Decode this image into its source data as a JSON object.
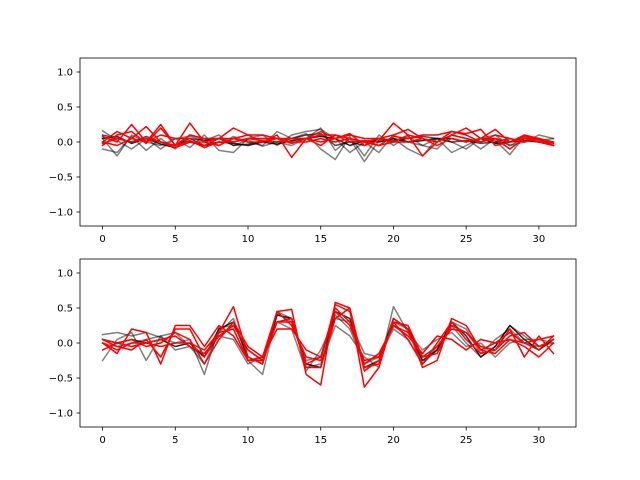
{
  "chart_data": [
    {
      "type": "line",
      "title": "",
      "xlabel": "",
      "ylabel": "",
      "xlim": [
        -1.55,
        32.55
      ],
      "ylim": [
        -1.2,
        1.2
      ],
      "xticks": [
        0,
        5,
        10,
        15,
        20,
        25,
        30
      ],
      "yticks": [
        -1.0,
        -0.5,
        0.0,
        0.5,
        1.0
      ],
      "xtick_labels": [
        "0",
        "5",
        "10",
        "15",
        "20",
        "25",
        "30"
      ],
      "ytick_labels": [
        "−1.0",
        "−0.5",
        "0.0",
        "0.5",
        "1.0"
      ],
      "grid": false,
      "x": [
        0,
        1,
        2,
        3,
        4,
        5,
        6,
        7,
        8,
        9,
        10,
        11,
        12,
        13,
        14,
        15,
        16,
        17,
        18,
        19,
        20,
        21,
        22,
        23,
        24,
        25,
        26,
        27,
        28,
        29,
        30,
        31
      ],
      "series": [
        {
          "color": "#000000",
          "opacity": 0.5,
          "values": [
            0.16,
            0.02,
            -0.1,
            0.05,
            -0.1,
            0.05,
            0.08,
            0.02,
            0.1,
            -0.05,
            0.03,
            -0.06,
            0.0,
            -0.05,
            0.05,
            0.2,
            -0.12,
            0.05,
            -0.28,
            0.02,
            0.05,
            -0.1,
            -0.2,
            0.05,
            -0.15,
            -0.05,
            0.05,
            0.02,
            -0.18,
            0.08,
            0.02,
            0.05
          ]
        },
        {
          "color": "#000000",
          "opacity": 0.5,
          "values": [
            -0.1,
            -0.15,
            0.08,
            -0.12,
            0.05,
            -0.1,
            0.1,
            0.05,
            -0.05,
            0.08,
            0.0,
            -0.05,
            0.15,
            0.05,
            0.12,
            -0.1,
            -0.25,
            0.08,
            -0.2,
            0.1,
            -0.05,
            0.08,
            -0.05,
            -0.1,
            0.1,
            0.05,
            -0.1,
            0.05,
            -0.05,
            0.0,
            0.1,
            0.05
          ]
        },
        {
          "color": "#000000",
          "opacity": 0.5,
          "values": [
            0.05,
            -0.2,
            0.1,
            0.0,
            -0.05,
            0.05,
            -0.08,
            0.1,
            -0.12,
            -0.15,
            0.05,
            0.1,
            -0.05,
            0.1,
            0.15,
            0.18,
            0.05,
            -0.15,
            0.0,
            -0.15,
            0.1,
            0.0,
            -0.05,
            0.05,
            0.0,
            -0.1,
            0.05,
            0.1,
            -0.05,
            0.05,
            0.0,
            0.0
          ]
        },
        {
          "color": "#000000",
          "opacity": 0.7,
          "values": [
            0.1,
            0.05,
            0.0,
            0.08,
            0.0,
            -0.05,
            0.05,
            0.02,
            0.05,
            -0.05,
            -0.03,
            0.02,
            0.0,
            0.05,
            0.1,
            0.12,
            -0.05,
            0.0,
            -0.05,
            0.05,
            0.02,
            0.05,
            0.08,
            0.05,
            0.0,
            0.02,
            -0.02,
            0.0,
            0.05,
            0.0,
            0.05,
            -0.05
          ]
        },
        {
          "color": "#000000",
          "opacity": 0.85,
          "values": [
            0.05,
            0.08,
            -0.02,
            0.05,
            -0.03,
            -0.08,
            0.0,
            -0.05,
            0.0,
            -0.02,
            -0.05,
            0.0,
            -0.03,
            0.02,
            0.05,
            0.08,
            0.05,
            -0.05,
            0.02,
            0.0,
            0.05,
            0.0,
            0.02,
            0.05,
            0.05,
            0.0,
            0.05,
            -0.02,
            0.0,
            0.02,
            0.0,
            -0.05
          ]
        },
        {
          "color": "#ff0000",
          "opacity": 1,
          "values": [
            0.0,
            0.15,
            0.05,
            0.0,
            0.25,
            -0.05,
            0.27,
            0.0,
            0.05,
            0.2,
            0.1,
            0.1,
            0.05,
            -0.02,
            0.05,
            0.15,
            0.05,
            0.12,
            -0.05,
            0.02,
            0.27,
            0.1,
            -0.2,
            0.0,
            0.1,
            0.2,
            0.05,
            0.18,
            0.0,
            0.08,
            0.03,
            -0.05
          ]
        },
        {
          "color": "#ff0000",
          "opacity": 1,
          "values": [
            -0.05,
            0.1,
            0.15,
            -0.02,
            0.2,
            -0.05,
            0.1,
            0.05,
            0.05,
            0.05,
            0.1,
            0.0,
            0.1,
            -0.22,
            0.05,
            0.1,
            0.1,
            0.0,
            0.02,
            -0.05,
            0.08,
            0.05,
            0.1,
            0.1,
            0.15,
            0.12,
            0.18,
            -0.05,
            0.0,
            0.1,
            0.05,
            -0.02
          ]
        },
        {
          "color": "#ff0000",
          "opacity": 1,
          "values": [
            0.08,
            0.0,
            0.25,
            0.0,
            0.1,
            0.05,
            0.05,
            -0.05,
            0.05,
            0.0,
            0.05,
            0.05,
            0.05,
            0.05,
            0.05,
            0.0,
            0.05,
            0.1,
            0.05,
            0.05,
            0.1,
            0.18,
            0.05,
            0.0,
            0.15,
            0.1,
            0.0,
            0.1,
            0.05,
            0.0,
            0.05,
            -0.05
          ]
        },
        {
          "color": "#ff0000",
          "opacity": 1,
          "values": [
            0.0,
            -0.05,
            0.05,
            0.22,
            0.0,
            -0.08,
            0.0,
            0.0,
            -0.05,
            0.05,
            0.0,
            0.0,
            0.05,
            0.0,
            0.0,
            0.05,
            0.0,
            0.05,
            0.0,
            -0.05,
            0.0,
            0.0,
            0.05,
            0.0,
            0.1,
            0.05,
            0.0,
            0.05,
            -0.1,
            0.05,
            0.0,
            -0.05
          ]
        },
        {
          "color": "#ff0000",
          "opacity": 1,
          "values": [
            -0.02,
            0.05,
            0.0,
            0.05,
            0.0,
            -0.05,
            0.02,
            -0.08,
            0.0,
            0.0,
            0.05,
            0.02,
            0.0,
            0.05,
            0.05,
            -0.05,
            0.1,
            0.05,
            0.0,
            0.05,
            0.0,
            0.1,
            0.05,
            -0.05,
            0.05,
            0.0,
            0.05,
            0.05,
            0.0,
            0.05,
            0.05,
            0.0
          ]
        }
      ]
    },
    {
      "type": "line",
      "title": "",
      "xlabel": "",
      "ylabel": "",
      "xlim": [
        -1.55,
        32.55
      ],
      "ylim": [
        -1.2,
        1.2
      ],
      "xticks": [
        0,
        5,
        10,
        15,
        20,
        25,
        30
      ],
      "yticks": [
        -1.0,
        -0.5,
        0.0,
        0.5,
        1.0
      ],
      "xtick_labels": [
        "0",
        "5",
        "10",
        "15",
        "20",
        "25",
        "30"
      ],
      "ytick_labels": [
        "−1.0",
        "−0.5",
        "0.0",
        "0.5",
        "1.0"
      ],
      "grid": false,
      "x": [
        0,
        1,
        2,
        3,
        4,
        5,
        6,
        7,
        8,
        9,
        10,
        11,
        12,
        13,
        14,
        15,
        16,
        17,
        18,
        19,
        20,
        21,
        22,
        23,
        24,
        25,
        26,
        27,
        28,
        29,
        30,
        31
      ],
      "series": [
        {
          "color": "#000000",
          "opacity": 0.5,
          "values": [
            0.12,
            0.15,
            0.1,
            0.15,
            0.08,
            0.0,
            0.05,
            -0.45,
            0.22,
            0.25,
            -0.1,
            -0.25,
            0.45,
            0.35,
            -0.35,
            -0.3,
            0.25,
            0.1,
            -0.2,
            -0.35,
            0.52,
            0.15,
            -0.1,
            0.05,
            0.15,
            -0.05,
            0.0,
            -0.2,
            0.0,
            0.05,
            0.05,
            0.0
          ]
        },
        {
          "color": "#000000",
          "opacity": 0.5,
          "values": [
            -0.25,
            0.05,
            0.15,
            -0.25,
            0.1,
            -0.1,
            -0.05,
            -0.2,
            0.1,
            0.05,
            -0.3,
            -0.2,
            0.3,
            0.2,
            -0.4,
            -0.1,
            0.35,
            0.3,
            -0.15,
            -0.2,
            0.2,
            0.05,
            -0.3,
            -0.05,
            0.25,
            0.0,
            -0.2,
            -0.05,
            0.25,
            0.1,
            -0.05,
            0.05
          ]
        },
        {
          "color": "#000000",
          "opacity": 0.5,
          "values": [
            0.0,
            -0.05,
            0.0,
            0.05,
            0.1,
            0.15,
            -0.05,
            -0.3,
            0.15,
            0.35,
            -0.25,
            -0.45,
            0.42,
            0.3,
            -0.25,
            -0.2,
            0.4,
            0.2,
            -0.3,
            -0.2,
            0.3,
            0.2,
            -0.3,
            -0.1,
            0.3,
            0.2,
            -0.15,
            0.05,
            0.2,
            0.0,
            -0.05,
            0.0
          ]
        },
        {
          "color": "#000000",
          "opacity": 0.85,
          "values": [
            0.05,
            0.0,
            0.05,
            0.0,
            0.05,
            -0.05,
            0.0,
            -0.2,
            0.2,
            0.3,
            -0.2,
            -0.3,
            0.4,
            0.35,
            -0.3,
            -0.35,
            0.45,
            0.35,
            -0.35,
            -0.25,
            0.35,
            0.2,
            -0.25,
            -0.1,
            0.3,
            0.1,
            -0.2,
            -0.05,
            0.25,
            0.05,
            -0.1,
            0.05
          ]
        },
        {
          "color": "#ff0000",
          "opacity": 1,
          "values": [
            0.0,
            -0.15,
            0.2,
            0.15,
            -0.3,
            0.25,
            0.25,
            -0.05,
            0.25,
            0.1,
            -0.25,
            -0.2,
            0.45,
            0.48,
            -0.45,
            -0.6,
            0.58,
            0.5,
            -0.63,
            -0.35,
            0.35,
            0.2,
            -0.35,
            -0.25,
            0.35,
            0.25,
            -0.1,
            -0.15,
            0.05,
            0.0,
            0.05,
            0.1
          ]
        },
        {
          "color": "#ff0000",
          "opacity": 1,
          "values": [
            0.05,
            -0.05,
            -0.1,
            0.05,
            -0.2,
            0.2,
            0.2,
            -0.2,
            0.15,
            0.52,
            -0.2,
            -0.3,
            0.45,
            0.25,
            -0.2,
            -0.25,
            0.55,
            0.45,
            -0.4,
            -0.25,
            0.3,
            0.05,
            -0.3,
            0.0,
            0.3,
            0.05,
            -0.15,
            -0.1,
            0.2,
            -0.2,
            0.1,
            -0.15
          ]
        },
        {
          "color": "#ff0000",
          "opacity": 1,
          "values": [
            -0.1,
            0.0,
            0.05,
            -0.05,
            0.0,
            0.15,
            0.05,
            -0.3,
            0.05,
            0.3,
            -0.05,
            -0.2,
            0.2,
            0.2,
            -0.1,
            -0.2,
            0.5,
            0.3,
            -0.3,
            -0.15,
            0.25,
            0.15,
            -0.2,
            -0.05,
            0.2,
            0.15,
            -0.05,
            -0.1,
            0.1,
            0.15,
            -0.05,
            0.05
          ]
        },
        {
          "color": "#ff0000",
          "opacity": 1,
          "values": [
            0.0,
            -0.1,
            0.0,
            0.0,
            0.05,
            0.1,
            -0.05,
            -0.15,
            0.1,
            0.25,
            -0.1,
            -0.25,
            0.3,
            0.3,
            -0.3,
            -0.2,
            0.45,
            0.25,
            -0.25,
            -0.2,
            0.25,
            0.1,
            -0.15,
            0.1,
            0.05,
            -0.1,
            0.05,
            0.0,
            0.05,
            -0.05,
            -0.2,
            0.0
          ]
        },
        {
          "color": "#ff0000",
          "opacity": 1,
          "values": [
            0.05,
            0.0,
            -0.05,
            0.0,
            -0.05,
            0.0,
            0.0,
            -0.1,
            0.15,
            0.2,
            -0.25,
            -0.25,
            0.3,
            0.35,
            -0.35,
            -0.35,
            0.35,
            0.5,
            -0.35,
            -0.3,
            0.3,
            0.25,
            -0.2,
            -0.15,
            0.25,
            0.15,
            -0.1,
            0.0,
            0.15,
            0.0,
            -0.1,
            0.1
          ]
        }
      ]
    }
  ]
}
